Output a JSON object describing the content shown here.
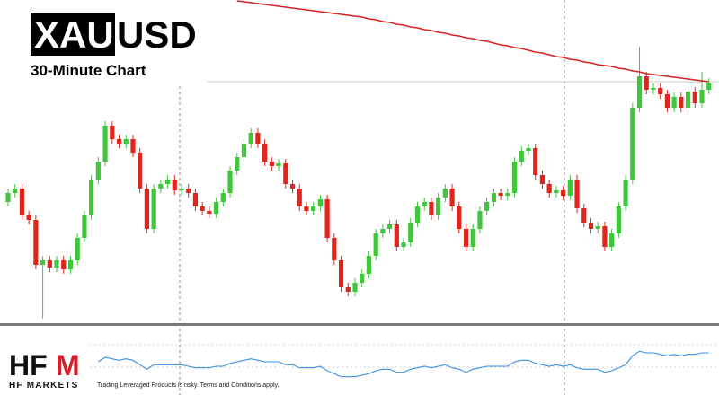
{
  "chart_data": {
    "type": "candlestick",
    "symbol_base": "XAU",
    "symbol_quote": "USD",
    "subtitle": "30-Minute Chart",
    "up_color": "#3fc63a",
    "down_color": "#e3241b",
    "ylim": [
      0,
      360
    ],
    "current_level": 269,
    "open": [
      135,
      145,
      150,
      120,
      115,
      65,
      70,
      62,
      70,
      60,
      70,
      95,
      120,
      160,
      180,
      220,
      205,
      200,
      205,
      190,
      150,
      105,
      150,
      155,
      160,
      148,
      150,
      145,
      130,
      125,
      122,
      135,
      145,
      170,
      185,
      200,
      212,
      200,
      180,
      175,
      178,
      155,
      150,
      130,
      125,
      130,
      138,
      95,
      70,
      40,
      35,
      45,
      55,
      75,
      100,
      105,
      110,
      85,
      90,
      112,
      130,
      135,
      120,
      140,
      150,
      130,
      105,
      85,
      105,
      125,
      135,
      145,
      142,
      145,
      180,
      192,
      195,
      165,
      155,
      145,
      148,
      142,
      160,
      128,
      112,
      105,
      108,
      85,
      100,
      130,
      160,
      240,
      275,
      260,
      262,
      255,
      240,
      252,
      240,
      258,
      245,
      260
    ],
    "high": [
      150,
      155,
      155,
      125,
      120,
      75,
      75,
      75,
      75,
      75,
      100,
      125,
      165,
      185,
      225,
      225,
      210,
      210,
      210,
      195,
      155,
      155,
      160,
      165,
      165,
      155,
      155,
      150,
      135,
      130,
      140,
      150,
      175,
      190,
      205,
      217,
      217,
      205,
      185,
      183,
      183,
      160,
      155,
      135,
      135,
      143,
      143,
      100,
      75,
      45,
      50,
      60,
      80,
      105,
      110,
      115,
      115,
      95,
      117,
      135,
      140,
      140,
      145,
      155,
      155,
      135,
      110,
      110,
      130,
      140,
      150,
      150,
      150,
      185,
      197,
      200,
      200,
      170,
      160,
      153,
      153,
      165,
      165,
      133,
      117,
      113,
      113,
      105,
      135,
      165,
      245,
      308,
      280,
      267,
      267,
      260,
      257,
      257,
      263,
      263,
      280,
      273
    ],
    "low": [
      130,
      140,
      115,
      110,
      60,
      5,
      57,
      57,
      55,
      55,
      65,
      90,
      115,
      155,
      175,
      200,
      195,
      195,
      185,
      145,
      100,
      100,
      145,
      150,
      143,
      143,
      140,
      125,
      120,
      117,
      117,
      130,
      140,
      165,
      180,
      195,
      195,
      175,
      170,
      170,
      150,
      145,
      125,
      120,
      120,
      125,
      90,
      65,
      35,
      30,
      30,
      40,
      50,
      70,
      95,
      100,
      80,
      80,
      85,
      107,
      125,
      115,
      115,
      135,
      125,
      100,
      80,
      80,
      100,
      120,
      130,
      137,
      137,
      140,
      175,
      187,
      160,
      150,
      140,
      140,
      137,
      137,
      123,
      107,
      100,
      100,
      80,
      80,
      95,
      125,
      155,
      235,
      255,
      255,
      250,
      235,
      235,
      235,
      235,
      240,
      240,
      255
    ],
    "close": [
      145,
      150,
      120,
      115,
      65,
      70,
      62,
      70,
      60,
      70,
      95,
      120,
      160,
      180,
      220,
      205,
      200,
      205,
      190,
      150,
      105,
      150,
      155,
      160,
      148,
      150,
      145,
      130,
      125,
      122,
      135,
      145,
      170,
      185,
      200,
      212,
      200,
      180,
      175,
      178,
      155,
      150,
      130,
      125,
      130,
      138,
      95,
      70,
      40,
      35,
      45,
      55,
      75,
      100,
      105,
      110,
      85,
      90,
      112,
      130,
      135,
      120,
      140,
      150,
      130,
      105,
      85,
      105,
      125,
      135,
      145,
      142,
      145,
      180,
      192,
      195,
      165,
      155,
      145,
      148,
      142,
      160,
      128,
      112,
      105,
      108,
      85,
      100,
      130,
      160,
      240,
      275,
      260,
      262,
      255,
      240,
      252,
      240,
      258,
      245,
      260,
      268
    ],
    "ma": {
      "color": "#d52424",
      "values": [
        null,
        null,
        null,
        null,
        null,
        null,
        null,
        null,
        null,
        null,
        null,
        null,
        null,
        null,
        null,
        null,
        null,
        null,
        null,
        null,
        null,
        null,
        null,
        null,
        null,
        null,
        null,
        null,
        null,
        null,
        null,
        null,
        null,
        359,
        358,
        357,
        356,
        355,
        354,
        353,
        352,
        351,
        350,
        349,
        348,
        347,
        346,
        345,
        344,
        343,
        342,
        341,
        339,
        338,
        336,
        335,
        333,
        332,
        330,
        329,
        327,
        326,
        324,
        323,
        321,
        320,
        318,
        317,
        315,
        314,
        312,
        310,
        309,
        307,
        306,
        304,
        302,
        301,
        299,
        297,
        296,
        294,
        293,
        291,
        290,
        288,
        287,
        286,
        284,
        283,
        281,
        280,
        278,
        277,
        276,
        275,
        274,
        273,
        272,
        271,
        270,
        269
      ]
    },
    "indicator": {
      "color": "#3b8fe3",
      "ylim": [
        0,
        30
      ],
      "values": [
        null,
        null,
        null,
        null,
        null,
        null,
        null,
        null,
        null,
        null,
        null,
        null,
        null,
        18,
        21,
        20,
        19,
        20,
        19,
        16,
        13,
        16,
        16,
        16,
        16,
        16,
        15,
        14,
        14,
        14,
        15,
        15,
        17,
        18,
        19,
        20,
        19,
        18,
        18,
        18,
        16,
        16,
        14,
        14,
        14,
        15,
        12,
        10,
        8,
        8,
        8,
        9,
        10,
        12,
        13,
        13,
        11,
        11,
        13,
        14,
        15,
        14,
        15,
        16,
        14,
        13,
        11,
        13,
        14,
        15,
        15,
        15,
        15,
        18,
        19,
        19,
        17,
        16,
        15,
        16,
        15,
        16,
        14,
        13,
        13,
        13,
        11,
        12,
        14,
        16,
        22,
        25,
        24,
        24,
        23,
        22,
        23,
        22,
        23,
        23,
        24,
        24
      ]
    },
    "logo": [
      "HF",
      "M"
    ],
    "brand": "HF MARKETS",
    "disclaimer": "Trading Leveraged Products is risky. Terms and Conditions apply."
  }
}
